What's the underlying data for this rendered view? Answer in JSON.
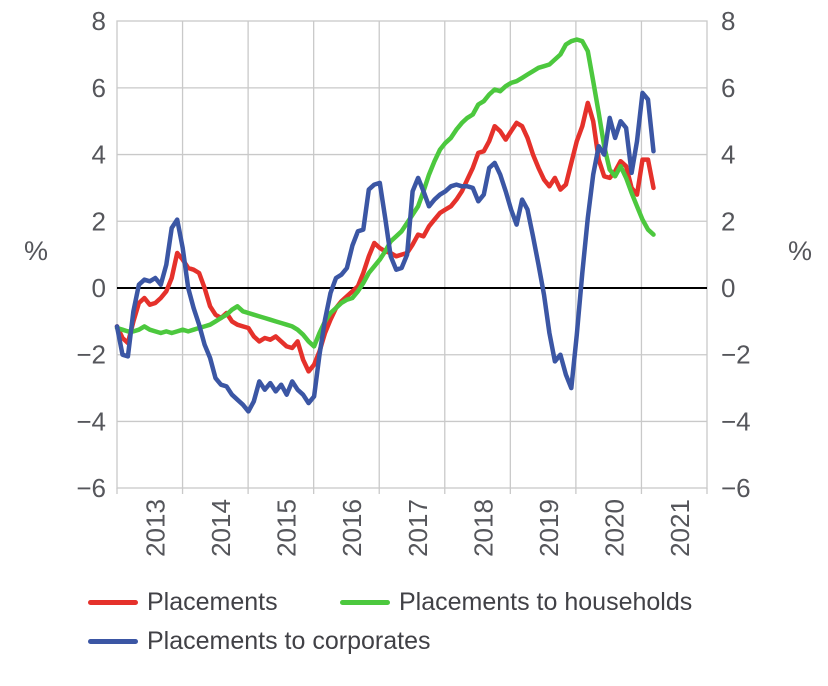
{
  "chart_data": {
    "type": "line",
    "title": "",
    "x_axis": {
      "tick_labels": [
        "2013",
        "2014",
        "2015",
        "2016",
        "2017",
        "2018",
        "2019",
        "2020",
        "2021"
      ],
      "start_year": 2012,
      "points_per_year": 12,
      "gridlines": true
    },
    "y_axis": {
      "tick_values": [
        8,
        6,
        4,
        2,
        0,
        -2,
        -4,
        -6
      ],
      "range": [
        -6,
        8
      ],
      "unit": "%",
      "zero_line": true,
      "gridlines": true
    },
    "legend": {
      "position": "bottom"
    },
    "series": [
      {
        "name": "Placements",
        "color": "#e5312b",
        "values": [
          -1.15,
          -1.5,
          -1.65,
          -1.0,
          -0.45,
          -0.3,
          -0.5,
          -0.45,
          -0.3,
          -0.1,
          0.3,
          1.05,
          0.85,
          0.6,
          0.55,
          0.45,
          0.0,
          -0.55,
          -0.8,
          -0.9,
          -0.75,
          -1.0,
          -1.1,
          -1.15,
          -1.2,
          -1.45,
          -1.6,
          -1.5,
          -1.55,
          -1.45,
          -1.6,
          -1.75,
          -1.8,
          -1.6,
          -2.15,
          -2.5,
          -2.3,
          -1.9,
          -1.35,
          -0.95,
          -0.6,
          -0.4,
          -0.25,
          -0.1,
          0.05,
          0.45,
          0.95,
          1.35,
          1.2,
          1.1,
          1.05,
          0.95,
          1.0,
          1.05,
          1.3,
          1.6,
          1.55,
          1.85,
          2.05,
          2.25,
          2.35,
          2.45,
          2.65,
          2.9,
          3.25,
          3.6,
          4.05,
          4.1,
          4.4,
          4.85,
          4.7,
          4.45,
          4.7,
          4.95,
          4.85,
          4.5,
          4.0,
          3.6,
          3.25,
          3.05,
          3.3,
          2.95,
          3.1,
          3.75,
          4.4,
          4.85,
          5.55,
          5.0,
          3.85,
          3.35,
          3.3,
          3.5,
          3.8,
          3.65,
          3.0,
          2.8,
          3.85,
          3.85,
          3.0
        ]
      },
      {
        "name": "Placements to households",
        "color": "#4cc83e",
        "values": [
          -1.2,
          -1.25,
          -1.3,
          -1.3,
          -1.25,
          -1.15,
          -1.25,
          -1.3,
          -1.35,
          -1.3,
          -1.35,
          -1.3,
          -1.25,
          -1.3,
          -1.25,
          -1.2,
          -1.15,
          -1.1,
          -1.0,
          -0.9,
          -0.8,
          -0.65,
          -0.55,
          -0.7,
          -0.75,
          -0.8,
          -0.85,
          -0.9,
          -0.95,
          -1.0,
          -1.05,
          -1.1,
          -1.15,
          -1.25,
          -1.4,
          -1.6,
          -1.75,
          -1.35,
          -1.0,
          -0.75,
          -0.6,
          -0.45,
          -0.35,
          -0.3,
          -0.1,
          0.15,
          0.45,
          0.65,
          0.85,
          1.1,
          1.4,
          1.55,
          1.7,
          1.95,
          2.2,
          2.45,
          2.9,
          3.4,
          3.8,
          4.15,
          4.35,
          4.5,
          4.75,
          4.95,
          5.1,
          5.2,
          5.5,
          5.6,
          5.8,
          5.95,
          5.9,
          6.05,
          6.15,
          6.2,
          6.3,
          6.4,
          6.5,
          6.6,
          6.65,
          6.7,
          6.85,
          7.0,
          7.3,
          7.4,
          7.45,
          7.4,
          7.1,
          6.2,
          5.25,
          4.25,
          3.55,
          3.35,
          3.65,
          3.3,
          2.85,
          2.45,
          2.05,
          1.75,
          1.6
        ]
      },
      {
        "name": "Placements to corporates",
        "color": "#3b56a4",
        "values": [
          -1.15,
          -2.0,
          -2.05,
          -0.7,
          0.1,
          0.25,
          0.2,
          0.3,
          0.1,
          0.7,
          1.8,
          2.05,
          1.2,
          0.0,
          -0.6,
          -1.1,
          -1.7,
          -2.1,
          -2.7,
          -2.9,
          -2.95,
          -3.2,
          -3.35,
          -3.5,
          -3.7,
          -3.4,
          -2.8,
          -3.05,
          -2.85,
          -3.1,
          -2.9,
          -3.2,
          -2.8,
          -3.05,
          -3.2,
          -3.45,
          -3.25,
          -2.0,
          -0.95,
          -0.15,
          0.3,
          0.4,
          0.6,
          1.27,
          1.7,
          1.75,
          2.95,
          3.1,
          3.15,
          2.1,
          0.95,
          0.55,
          0.6,
          1.0,
          2.9,
          3.3,
          2.9,
          2.45,
          2.65,
          2.8,
          2.9,
          3.05,
          3.1,
          3.05,
          3.05,
          3.0,
          2.6,
          2.8,
          3.6,
          3.75,
          3.4,
          2.9,
          2.35,
          1.9,
          2.65,
          2.35,
          1.55,
          0.7,
          -0.2,
          -1.35,
          -2.2,
          -2.0,
          -2.6,
          -3.0,
          -1.4,
          0.45,
          2.1,
          3.4,
          4.25,
          4.0,
          5.1,
          4.5,
          5.0,
          4.8,
          3.45,
          4.4,
          5.85,
          5.65,
          4.1
        ]
      }
    ]
  },
  "colors": {
    "background": "#ffffff",
    "gridline": "#c9c9c9",
    "zero_line": "#000000",
    "axis_text": "#55565b",
    "legend_text": "#414146"
  }
}
